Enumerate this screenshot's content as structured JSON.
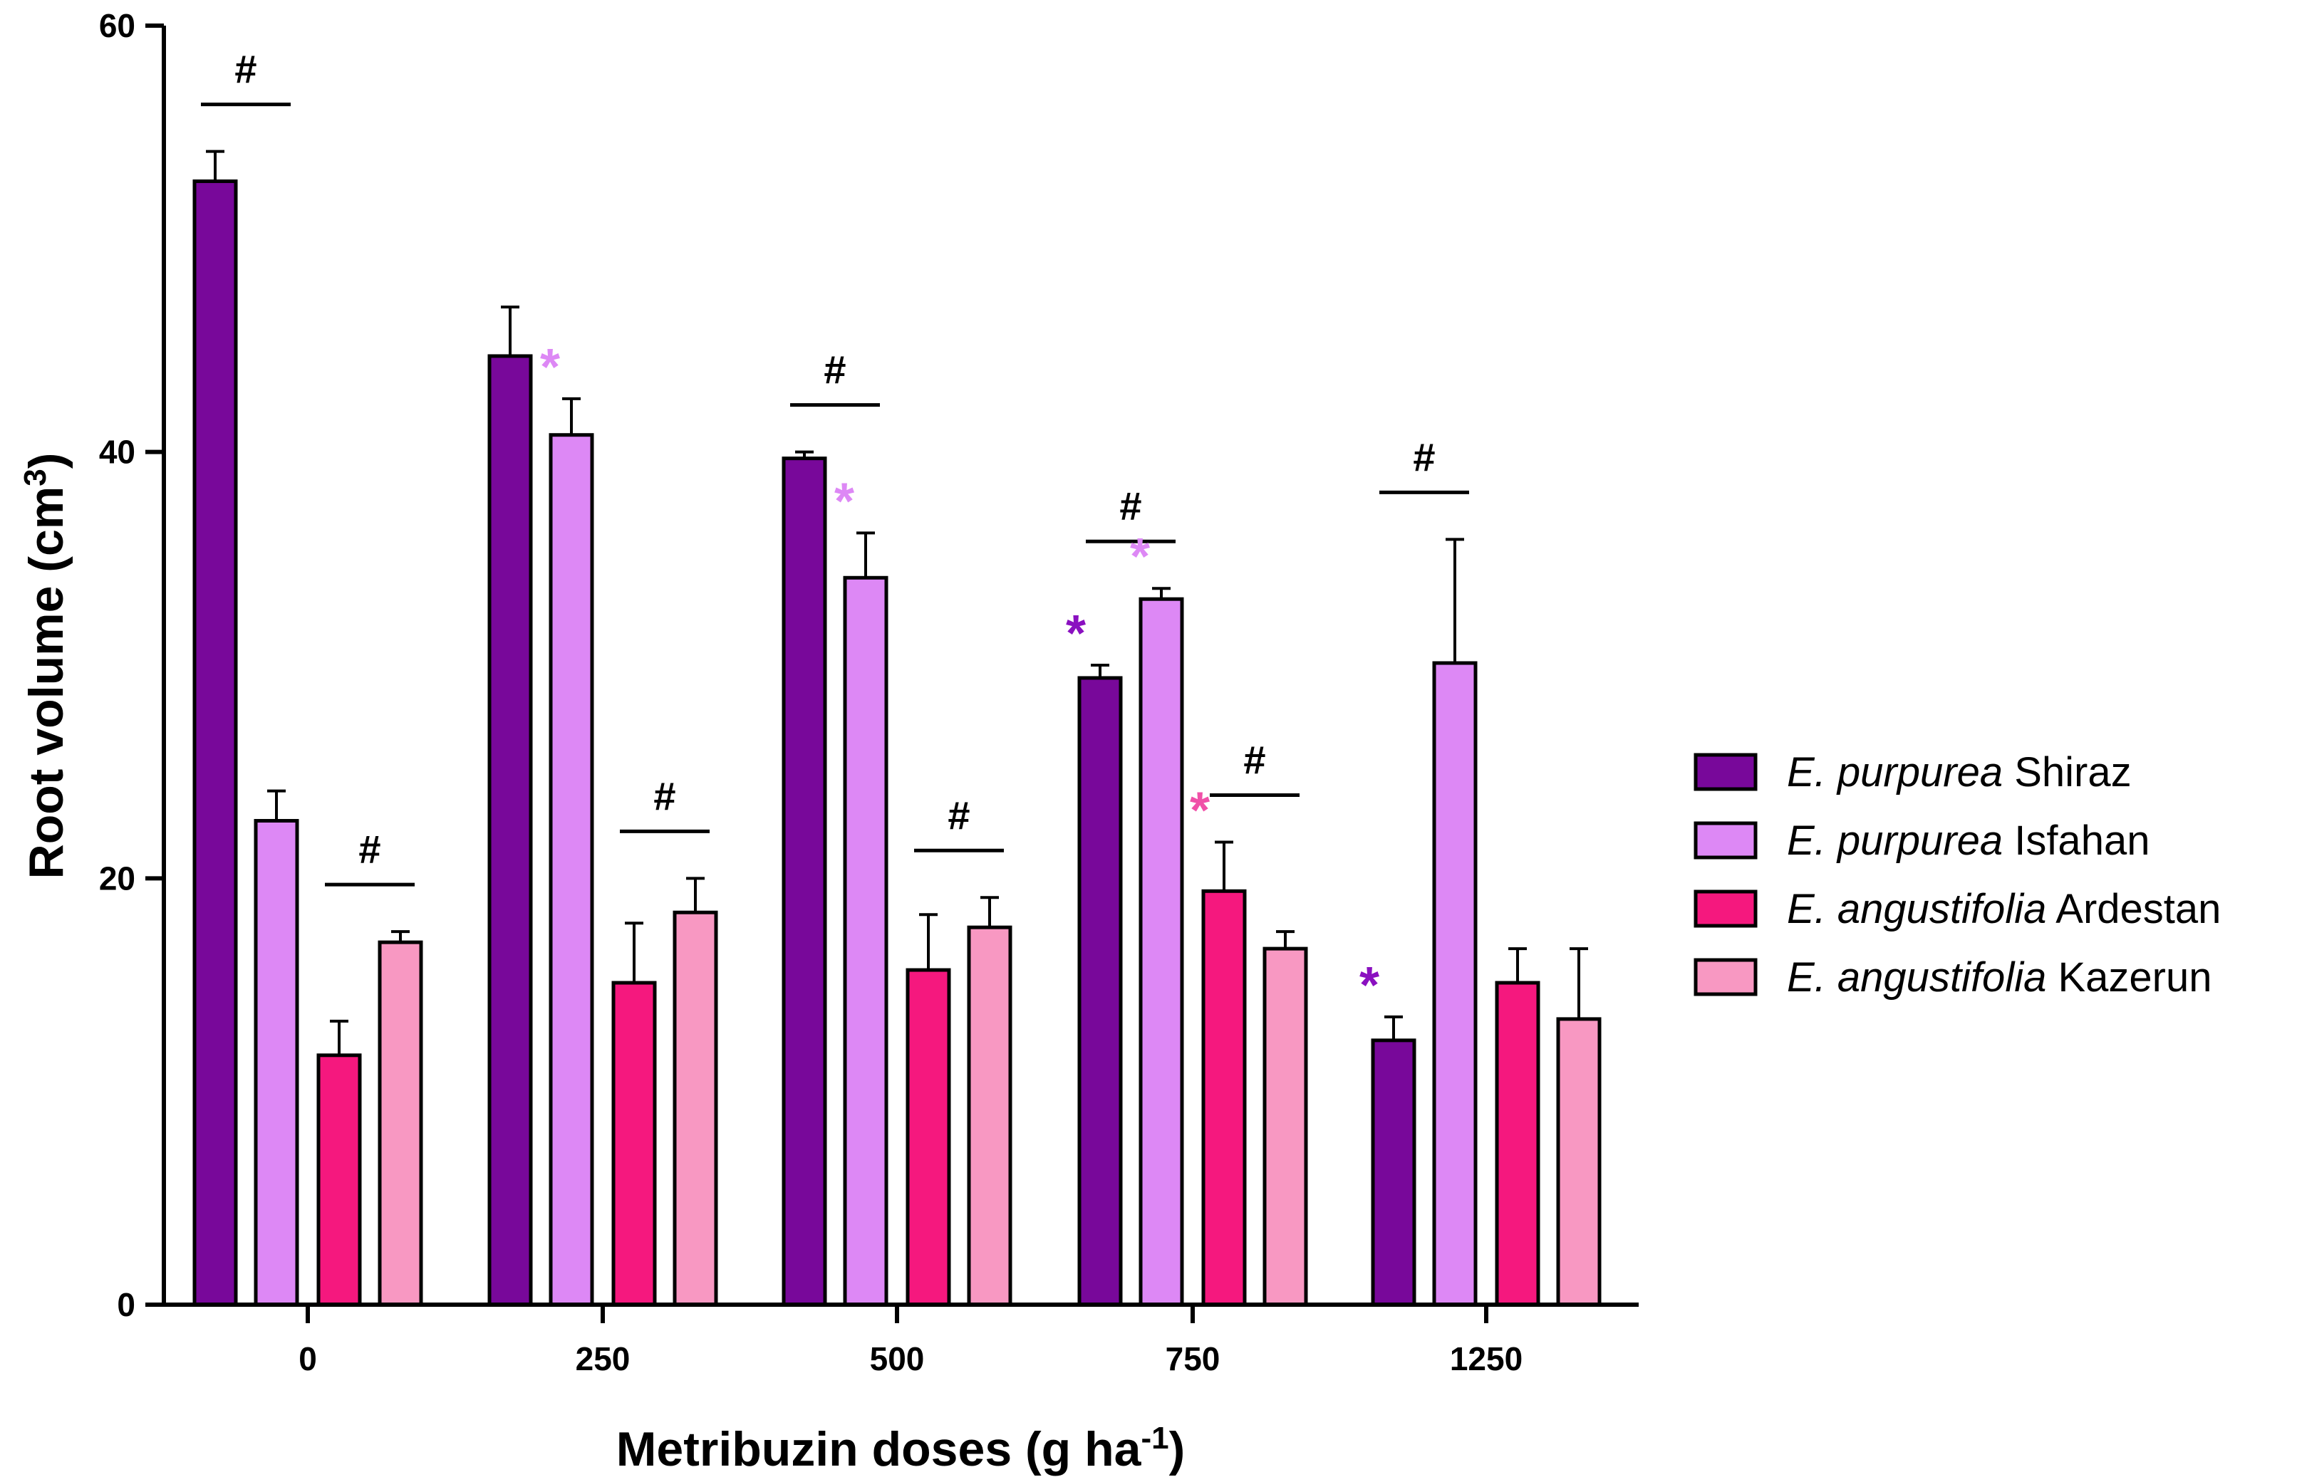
{
  "chart_data": {
    "type": "bar",
    "title": "",
    "xlabel": "Metribuzin doses (g ha",
    "xlabel_sup": "-1",
    "xlabel_end": ")",
    "ylabel": "Root volume (cm",
    "ylabel_sup": "3",
    "ylabel_end": ")",
    "ylim": [
      0,
      60
    ],
    "yticks": [
      "0",
      "20",
      "40",
      "60"
    ],
    "ytick_values": [
      0,
      20,
      40,
      60
    ],
    "categories": [
      "0",
      "250",
      "500",
      "750",
      "1250"
    ],
    "legend_position": "right",
    "series": [
      {
        "name": "E. purpurea Shiraz",
        "species": "E. purpurea",
        "site": "Shiraz",
        "color": "#78089a",
        "values": [
          52.7,
          44.5,
          39.7,
          29.4,
          12.4
        ],
        "errors": [
          1.4,
          2.3,
          0.3,
          0.6,
          1.1
        ]
      },
      {
        "name": "E. purpurea Isfahan",
        "species": "E. purpurea",
        "site": "Isfahan",
        "color": "#dd88f5",
        "values": [
          22.7,
          40.8,
          34.1,
          33.1,
          30.1
        ],
        "errors": [
          1.4,
          1.7,
          2.1,
          0.5,
          5.8
        ]
      },
      {
        "name": "E. angustifolia Ardestan",
        "species": "E. angustifolia",
        "site": "Ardestan",
        "color": "#f5187e",
        "values": [
          11.7,
          15.1,
          15.7,
          19.4,
          15.1
        ],
        "errors": [
          1.6,
          2.8,
          2.6,
          2.3,
          1.6
        ]
      },
      {
        "name": "E. angustifolia Kazerun",
        "species": "E. angustifolia",
        "site": "Kazerun",
        "color": "#f898c2",
        "values": [
          17.0,
          18.4,
          17.7,
          16.7,
          13.4
        ],
        "errors": [
          0.5,
          1.6,
          1.4,
          0.8,
          3.3
        ]
      }
    ],
    "significance_hash": [
      {
        "symbol": "#",
        "category_index": 0,
        "series": [
          0,
          1
        ]
      },
      {
        "symbol": "#",
        "category_index": 0,
        "series": [
          2,
          3
        ]
      },
      {
        "symbol": "#",
        "category_index": 1,
        "series": [
          2,
          3
        ]
      },
      {
        "symbol": "#",
        "category_index": 2,
        "series": [
          0,
          1
        ]
      },
      {
        "symbol": "#",
        "category_index": 2,
        "series": [
          2,
          3
        ]
      },
      {
        "symbol": "#",
        "category_index": 3,
        "series": [
          0,
          1
        ]
      },
      {
        "symbol": "#",
        "category_index": 3,
        "series": [
          2,
          3
        ]
      },
      {
        "symbol": "#",
        "category_index": 4,
        "series": [
          0,
          1
        ]
      }
    ],
    "significance_star": [
      {
        "symbol": "*",
        "category_index": 1,
        "series": 1,
        "color": "#dd88f5"
      },
      {
        "symbol": "*",
        "category_index": 2,
        "series": 1,
        "color": "#dd88f5"
      },
      {
        "symbol": "*",
        "category_index": 3,
        "series": 0,
        "color": "#8a10c0"
      },
      {
        "symbol": "*",
        "category_index": 3,
        "series": 1,
        "color": "#dd88f5"
      },
      {
        "symbol": "*",
        "category_index": 3,
        "series": 2,
        "color": "#f050a8"
      },
      {
        "symbol": "*",
        "category_index": 4,
        "series": 0,
        "color": "#8a10c0"
      }
    ]
  }
}
